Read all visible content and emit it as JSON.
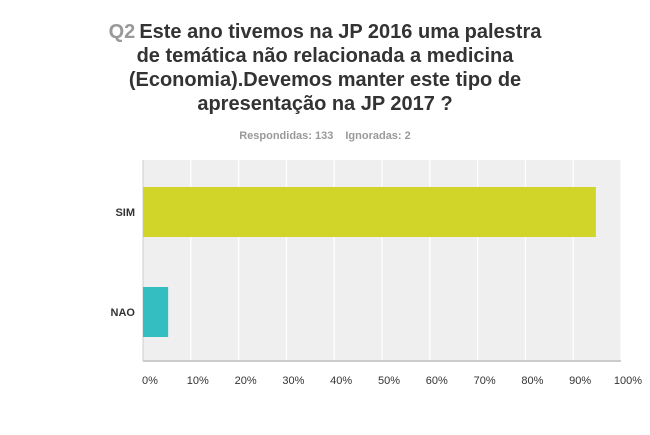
{
  "question": {
    "number": "Q2",
    "text": "Este ano tivemos na JP 2016 uma palestra de temática não relacionada a medicina (Economia).Devemos manter este tipo de apresentação na JP 2017 ?",
    "answered_label": "Respondidas: 133",
    "skipped_label": "Ignoradas: 2"
  },
  "chart_data": {
    "type": "bar",
    "orientation": "horizontal",
    "categories": [
      "SIM",
      "NAO"
    ],
    "values": [
      94.74,
      5.26
    ],
    "colors": [
      "#d1d52a",
      "#34bec1"
    ],
    "xlim": [
      0,
      100
    ],
    "x_ticks": [
      "0%",
      "10%",
      "20%",
      "30%",
      "40%",
      "50%",
      "60%",
      "70%",
      "80%",
      "90%",
      "100%"
    ],
    "grid": true,
    "background": "#efefef"
  }
}
